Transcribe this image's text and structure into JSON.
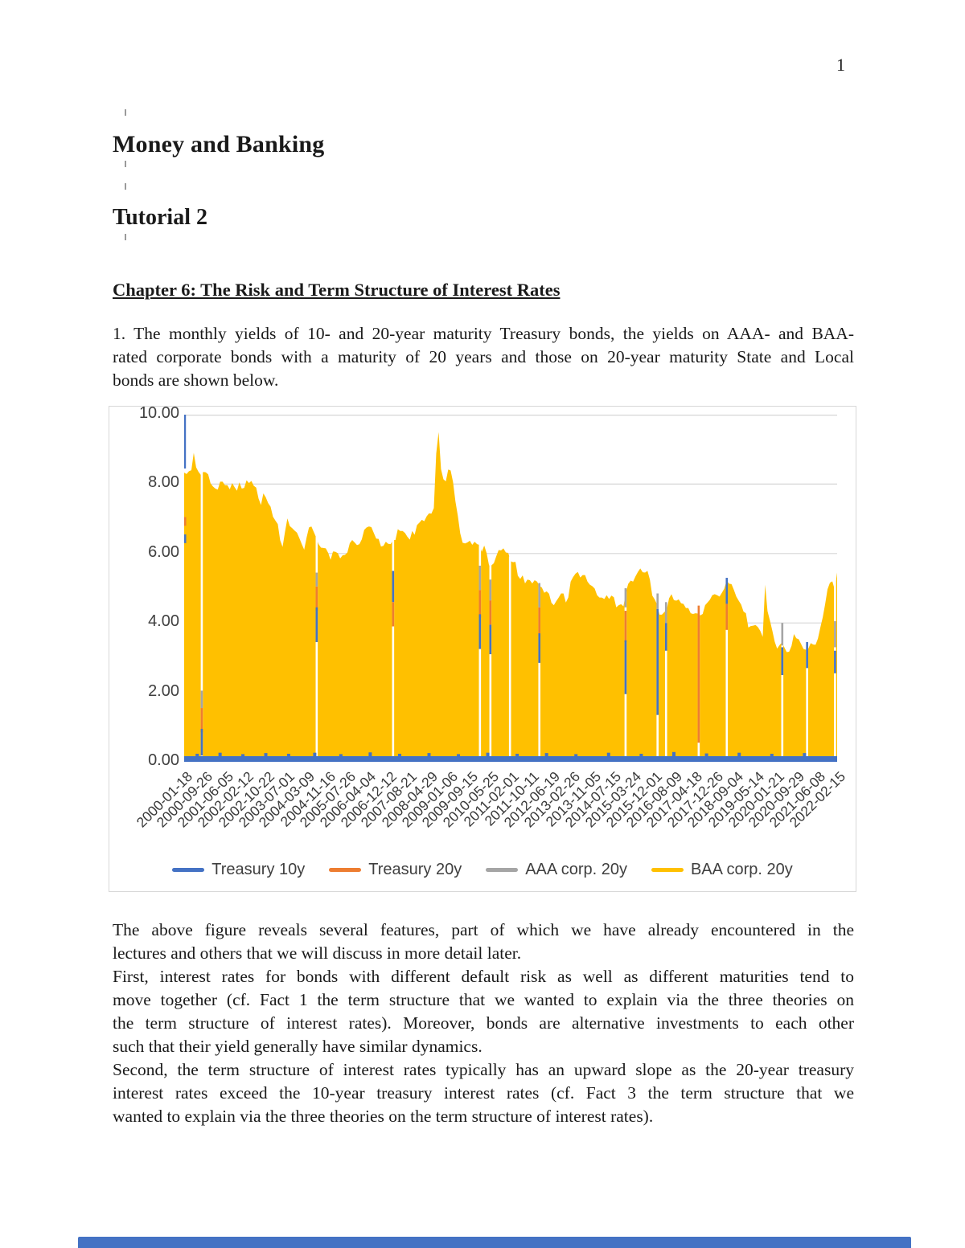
{
  "page": {
    "number": "1"
  },
  "colors": {
    "treasury10y_blue": "#4472C4",
    "treasury20y_orange": "#ED7D31",
    "aaa_gray": "#A5A5A5",
    "baa_gold": "#FFC000",
    "gridline": "#d6d6d6",
    "figure_border": "#d8d8d8"
  },
  "doc": {
    "title": "Money and Banking",
    "subtitle": "Tutorial 2",
    "chapter": "Chapter 6: The Risk and Term Structure of Interest Rates",
    "intro_paragraph": {
      "lines": [
        "1. The monthly yields of 10- and 20-year maturity Treasury bonds, the yields on AAA- and BAA-",
        "rated corporate bonds with a maturity of 20 years and those on 20-year maturity State and Local",
        "bonds are shown below."
      ]
    },
    "discussion_paragraphs": [
      {
        "lines": [
          "The above figure reveals several features, part of which we have already encountered in the",
          "lectures and others that we will discuss in more detail later."
        ]
      },
      {
        "lines": [
          "First, interest rates for bonds with different default risk as well as different maturities tend to",
          "move together (cf. Fact 1 the term structure that we wanted to explain via the three theories on",
          "the term structure of interest rates). Moreover, bonds are alternative investments to each other",
          "such that their yield generally have similar dynamics."
        ]
      },
      {
        "lines": [
          "Second, the term structure of interest rates typically has an upward slope as the 20-year treasury",
          "interest rates exceed the 10-year treasury interest rates (cf. Fact 3 the term structure that we",
          "wanted to explain via the three theories on the term structure of interest rates)."
        ]
      }
    ]
  },
  "chart_data": {
    "type": "area",
    "title": "",
    "xlabel": "",
    "ylabel": "",
    "ylim": [
      0,
      10
    ],
    "grid": true,
    "legend_position": "bottom",
    "y_tick_labels": [
      "0.00",
      "2.00",
      "4.00",
      "6.00",
      "8.00",
      "10.00"
    ],
    "x_tick_labels": [
      "2000-01-18",
      "2000-09-26",
      "2001-06-05",
      "2002-02-12",
      "2002-10-22",
      "2003-07-01",
      "2004-03-09",
      "2004-11-16",
      "2005-07-26",
      "2006-04-04",
      "2006-12-12",
      "2007-08-21",
      "2008-04-29",
      "2009-01-06",
      "2009-09-15",
      "2010-05-25",
      "2011-02-01",
      "2011-10-11",
      "2012-06-19",
      "2013-02-26",
      "2013-11-05",
      "2014-07-15",
      "2015-03-24",
      "2015-12-01",
      "2016-08-09",
      "2017-04-18",
      "2017-12-26",
      "2018-09-04",
      "2019-05-14",
      "2020-01-21",
      "2020-09-29",
      "2021-06-08",
      "2022-02-15"
    ],
    "legend": [
      {
        "label": "Treasury 10y",
        "color": "#4472C4"
      },
      {
        "label": "Treasury 20y",
        "color": "#ED7D31"
      },
      {
        "label": "AAA corp. 20y",
        "color": "#A5A5A5"
      },
      {
        "label": "BAA corp. 20y",
        "color": "#FFC000"
      }
    ],
    "series": [
      {
        "name": "BAA corp. 20y",
        "color": "#FFC000",
        "x_start": "2000-01",
        "x_end": "2022-09",
        "frequency": "monthly",
        "values": [
          8.33,
          8.29,
          8.37,
          8.4,
          8.9,
          8.48,
          8.35,
          8.26,
          8.35,
          8.34,
          8.28,
          8.02,
          7.93,
          7.87,
          7.84,
          8.07,
          8.07,
          7.97,
          7.97,
          7.85,
          8.03,
          7.91,
          7.81,
          8.05,
          7.87,
          7.89,
          8.11,
          8.03,
          8.09,
          7.95,
          7.9,
          7.58,
          7.4,
          7.73,
          7.62,
          7.45,
          7.35,
          7.06,
          6.95,
          6.85,
          6.38,
          6.19,
          6.62,
          7.01,
          6.79,
          6.73,
          6.66,
          6.6,
          6.44,
          6.27,
          6.11,
          6.46,
          6.75,
          6.78,
          6.62,
          6.46,
          6.27,
          6.17,
          6.16,
          6.15,
          6.02,
          5.82,
          6.06,
          6.05,
          6.01,
          5.86,
          5.95,
          5.96,
          6.03,
          6.3,
          6.39,
          6.32,
          6.24,
          6.27,
          6.41,
          6.68,
          6.75,
          6.78,
          6.76,
          6.59,
          6.43,
          6.42,
          6.2,
          6.22,
          6.34,
          6.28,
          6.27,
          6.39,
          6.39,
          6.7,
          6.65,
          6.65,
          6.59,
          6.48,
          6.4,
          6.65,
          6.54,
          6.82,
          6.89,
          6.97,
          6.93,
          7.07,
          7.16,
          7.15,
          7.31,
          8.88,
          9.5,
          8.43,
          8.14,
          8.08,
          8.42,
          8.39,
          8.06,
          7.5,
          7.09,
          6.58,
          6.31,
          6.29,
          6.32,
          6.37,
          6.25,
          6.34,
          6.27,
          6.25,
          6.05,
          6.23,
          6.01,
          5.66,
          5.66,
          5.72,
          5.92,
          6.1,
          6.09,
          6.15,
          6.03,
          6.02,
          5.78,
          5.75,
          5.76,
          5.36,
          5.27,
          5.37,
          5.14,
          5.25,
          5.23,
          5.14,
          5.23,
          5.19,
          5.07,
          5.02,
          4.87,
          4.91,
          4.84,
          4.58,
          4.51,
          4.63,
          4.73,
          4.85,
          4.85,
          4.59,
          4.73,
          5.19,
          5.32,
          5.42,
          5.47,
          5.31,
          5.38,
          5.38,
          5.19,
          5.1,
          5.06,
          4.99,
          4.8,
          4.73,
          4.73,
          4.69,
          4.8,
          4.69,
          4.79,
          4.74,
          4.45,
          4.51,
          4.54,
          4.48,
          4.89,
          5.13,
          5.22,
          5.19,
          5.34,
          5.47,
          5.57,
          5.46,
          5.45,
          5.5,
          5.25,
          4.79,
          4.68,
          4.53,
          4.24,
          4.24,
          4.31,
          4.38,
          4.71,
          4.83,
          4.66,
          4.64,
          4.68,
          4.57,
          4.55,
          4.43,
          4.43,
          4.28,
          4.26,
          4.28,
          4.27,
          4.22,
          4.26,
          4.51,
          4.59,
          4.67,
          4.8,
          4.83,
          4.8,
          4.76,
          4.87,
          4.99,
          5.22,
          5.13,
          5.12,
          4.95,
          4.76,
          4.64,
          4.53,
          4.33,
          4.28,
          3.87,
          3.91,
          3.92,
          3.94,
          3.88,
          3.77,
          3.6,
          5.1,
          4.34,
          4.07,
          3.78,
          3.46,
          3.26,
          3.36,
          3.44,
          3.3,
          3.16,
          3.17,
          3.34,
          3.68,
          3.56,
          3.53,
          3.39,
          3.25,
          3.23,
          3.26,
          3.42,
          3.38,
          3.37,
          3.55,
          3.87,
          4.16,
          4.54,
          4.97,
          5.16,
          5.2,
          4.96,
          5.45
        ]
      }
    ],
    "occluded_series": [
      "Treasury 10y",
      "Treasury 20y",
      "AAA corp. 20y"
    ],
    "gaps": [
      {
        "t": 0.027,
        "slivers": [
          [
            "gray",
            2.05,
            1.55
          ],
          [
            "orange",
            1.55,
            0.85
          ],
          [
            "blue",
            0.95,
            0.18
          ]
        ]
      },
      {
        "t": 0.203,
        "slivers": [
          [
            "gray",
            5.45,
            5.05
          ],
          [
            "orange",
            5.05,
            4.35
          ],
          [
            "blue",
            4.45,
            3.45
          ]
        ]
      },
      {
        "t": 0.32,
        "slivers": [
          [
            "blue",
            5.5,
            4.6
          ],
          [
            "orange",
            4.6,
            3.9
          ]
        ]
      },
      {
        "t": 0.453,
        "slivers": [
          [
            "gray",
            5.65,
            4.95
          ],
          [
            "orange",
            4.95,
            4.15
          ],
          [
            "blue",
            4.25,
            3.25
          ]
        ]
      },
      {
        "t": 0.469,
        "slivers": [
          [
            "gray",
            5.25,
            4.65
          ],
          [
            "orange",
            4.65,
            3.95
          ],
          [
            "blue",
            3.95,
            3.1
          ]
        ]
      },
      {
        "t": 0.499,
        "slivers": []
      },
      {
        "t": 0.544,
        "slivers": [
          [
            "gray",
            5.15,
            4.45
          ],
          [
            "orange",
            4.45,
            3.6
          ],
          [
            "blue",
            3.7,
            2.85
          ]
        ]
      },
      {
        "t": 0.676,
        "slivers": [
          [
            "gray",
            5.0,
            4.45
          ],
          [
            "orange",
            4.35,
            3.45
          ],
          [
            "blue",
            3.5,
            1.95
          ]
        ]
      },
      {
        "t": 0.725,
        "slivers": [
          [
            "gray",
            4.85,
            4.4
          ],
          [
            "blue",
            4.4,
            1.35
          ]
        ]
      },
      {
        "t": 0.738,
        "slivers": [
          [
            "gray",
            4.6,
            4.0
          ],
          [
            "blue",
            4.0,
            3.2
          ]
        ]
      },
      {
        "t": 0.788,
        "slivers": [
          [
            "orange",
            4.5,
            0.55
          ]
        ]
      },
      {
        "t": 0.831,
        "slivers": [
          [
            "blue",
            5.3,
            4.55
          ],
          [
            "orange",
            4.55,
            3.8
          ]
        ]
      },
      {
        "t": 0.916,
        "slivers": [
          [
            "gray",
            4.0,
            3.35
          ],
          [
            "blue",
            3.3,
            2.5
          ]
        ]
      },
      {
        "t": 0.954,
        "slivers": [
          [
            "blue",
            3.45,
            2.7
          ]
        ]
      },
      {
        "t": 0.999,
        "slivers": [
          [
            "gray",
            4.05,
            3.3
          ],
          [
            "blue",
            3.2,
            2.55
          ]
        ]
      }
    ],
    "baseline_strip": {
      "color": "blue",
      "height_v": 0.16,
      "bumps": [
        [
          0.02,
          0.07
        ],
        [
          0.055,
          0.1
        ],
        [
          0.09,
          0.06
        ],
        [
          0.125,
          0.09
        ],
        [
          0.16,
          0.07
        ],
        [
          0.2,
          0.1
        ],
        [
          0.24,
          0.06
        ],
        [
          0.285,
          0.11
        ],
        [
          0.33,
          0.07
        ],
        [
          0.375,
          0.09
        ],
        [
          0.42,
          0.06
        ],
        [
          0.465,
          0.1
        ],
        [
          0.51,
          0.07
        ],
        [
          0.555,
          0.09
        ],
        [
          0.6,
          0.06
        ],
        [
          0.65,
          0.1
        ],
        [
          0.7,
          0.07
        ],
        [
          0.75,
          0.12
        ],
        [
          0.8,
          0.08
        ],
        [
          0.85,
          0.1
        ],
        [
          0.9,
          0.07
        ],
        [
          0.95,
          0.09
        ]
      ]
    },
    "left_edge": {
      "blue_spike": [
        8.45,
        10.0
      ],
      "orange_notch": [
        6.8,
        7.05
      ],
      "blue_notch": [
        6.3,
        6.55
      ]
    }
  }
}
